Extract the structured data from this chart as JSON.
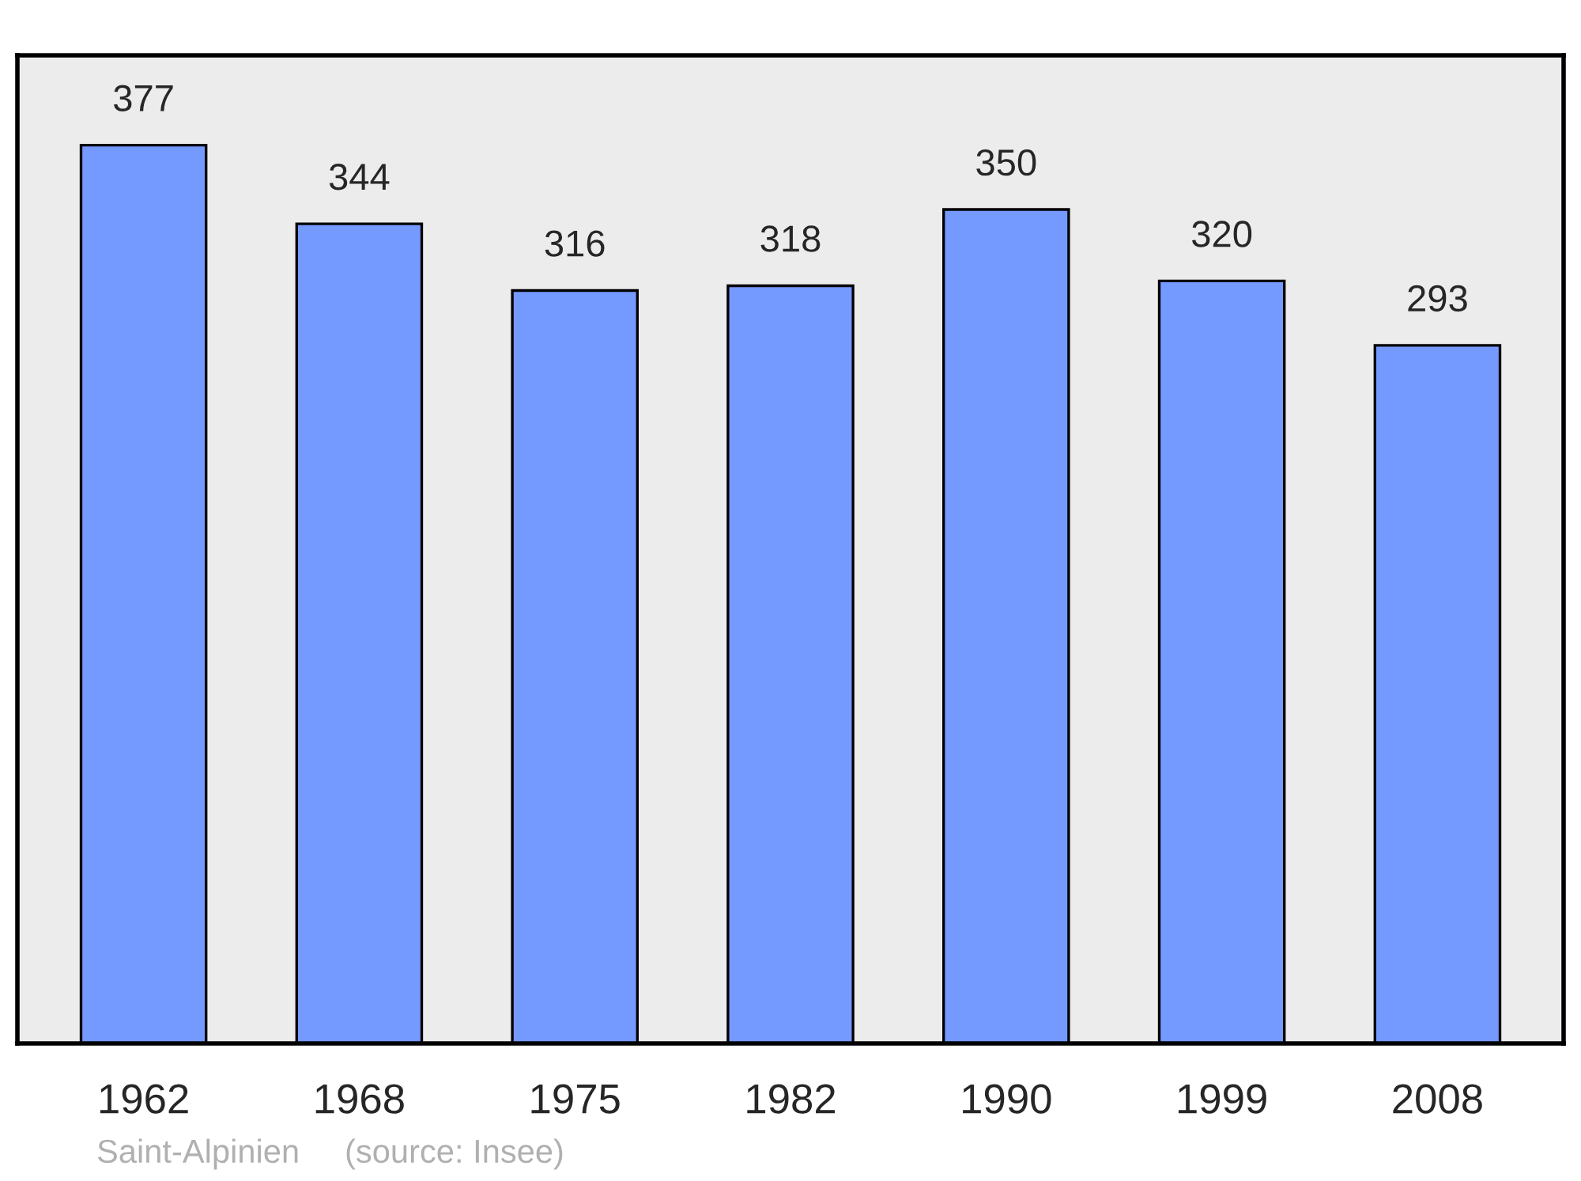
{
  "chart_data": {
    "type": "bar",
    "categories": [
      "1962",
      "1968",
      "1975",
      "1982",
      "1990",
      "1999",
      "2008"
    ],
    "values": [
      377,
      344,
      316,
      318,
      350,
      320,
      293
    ],
    "color": "#7499ff",
    "data_labels": true,
    "grid": false,
    "annotations": [
      "Saint-Alpinien",
      "(source: Insee)"
    ]
  }
}
